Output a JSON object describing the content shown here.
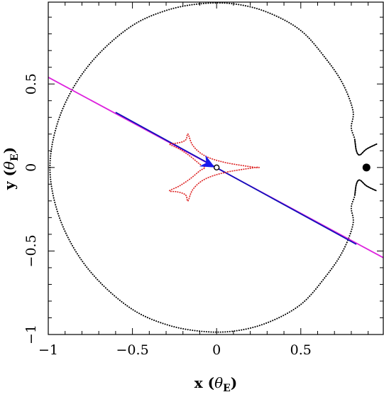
{
  "chart_data": {
    "type": "line",
    "xlabel": "x (θ_E)",
    "ylabel": "y (θ_E)",
    "xlim": [
      -1.0,
      0.99
    ],
    "ylim": [
      -1.0,
      0.99
    ],
    "xticks": [
      -1,
      -0.5,
      0,
      0.5
    ],
    "xtick_labels": [
      "−1",
      "−0.5",
      "0",
      "0.5"
    ],
    "yticks": [
      -1,
      -0.5,
      0,
      0.5
    ],
    "ytick_labels": [
      "−1",
      "−0.5",
      "0",
      "0.5"
    ],
    "grid": false,
    "critical_curve": {
      "style": "dotted",
      "color": "#000000",
      "outer_loop": [
        [
          0.81,
          0.34
        ],
        [
          0.75,
          0.5
        ],
        [
          0.65,
          0.65
        ],
        [
          0.5,
          0.82
        ],
        [
          0.3,
          0.93
        ],
        [
          0.1,
          0.98
        ],
        [
          -0.1,
          0.98
        ],
        [
          -0.3,
          0.94
        ],
        [
          -0.5,
          0.85
        ],
        [
          -0.7,
          0.68
        ],
        [
          -0.85,
          0.48
        ],
        [
          -0.95,
          0.25
        ],
        [
          -0.99,
          0.0
        ],
        [
          -0.95,
          -0.25
        ],
        [
          -0.85,
          -0.48
        ],
        [
          -0.7,
          -0.68
        ],
        [
          -0.5,
          -0.85
        ],
        [
          -0.3,
          -0.94
        ],
        [
          -0.1,
          -0.98
        ],
        [
          0.1,
          -0.98
        ],
        [
          0.3,
          -0.93
        ],
        [
          0.5,
          -0.82
        ],
        [
          0.65,
          -0.65
        ],
        [
          0.75,
          -0.5
        ],
        [
          0.81,
          -0.34
        ]
      ],
      "notch_upper": [
        [
          0.81,
          0.34
        ],
        [
          0.8,
          0.24
        ],
        [
          0.82,
          0.17
        ],
        [
          0.83,
          0.1
        ],
        [
          0.85,
          0.075
        ],
        [
          0.89,
          0.11
        ],
        [
          0.95,
          0.14
        ]
      ],
      "notch_lower": [
        [
          0.81,
          -0.34
        ],
        [
          0.8,
          -0.24
        ],
        [
          0.82,
          -0.17
        ],
        [
          0.83,
          -0.1
        ],
        [
          0.85,
          -0.075
        ],
        [
          0.89,
          -0.11
        ],
        [
          0.95,
          -0.14
        ]
      ]
    },
    "caustic": {
      "color": "#dd2222",
      "vertices": [
        [
          -0.17,
          0.2
        ],
        [
          0.23,
          0.0
        ],
        [
          -0.17,
          -0.2
        ],
        [
          -0.28,
          0.14
        ],
        [
          -0.28,
          -0.14
        ]
      ],
      "curve_points": [
        [
          0.23,
          0.0
        ],
        [
          0.05,
          0.03
        ],
        [
          -0.07,
          0.07
        ],
        [
          -0.14,
          0.13
        ],
        [
          -0.17,
          0.2
        ],
        [
          -0.18,
          0.17
        ],
        [
          -0.2,
          0.155
        ],
        [
          -0.24,
          0.145
        ],
        [
          -0.28,
          0.14
        ],
        [
          -0.22,
          0.11
        ],
        [
          -0.16,
          0.07
        ],
        [
          -0.1,
          0.02
        ],
        [
          -0.07,
          0.0
        ],
        [
          -0.1,
          -0.02
        ],
        [
          -0.16,
          -0.07
        ],
        [
          -0.22,
          -0.11
        ],
        [
          -0.28,
          -0.14
        ],
        [
          -0.24,
          -0.145
        ],
        [
          -0.2,
          -0.155
        ],
        [
          -0.18,
          -0.17
        ],
        [
          -0.17,
          -0.2
        ],
        [
          -0.14,
          -0.13
        ],
        [
          -0.07,
          -0.07
        ],
        [
          0.05,
          -0.03
        ],
        [
          0.23,
          0.0
        ]
      ]
    },
    "trajectory": {
      "color_outside": "#dd22dd",
      "color_inside": "#1111bb",
      "start": [
        -1.0,
        0.54
      ],
      "end": [
        0.99,
        -0.54
      ],
      "inside_start": [
        -0.6,
        0.33
      ],
      "inside_end": [
        0.83,
        -0.46
      ]
    },
    "source_arrow": {
      "color": "#1a1aee",
      "tip": [
        -0.01,
        0.0
      ],
      "direction": [
        1.0,
        -0.54
      ]
    },
    "lens_markers": [
      {
        "name": "primary",
        "x": 0.0,
        "y": 0.0,
        "size": "small",
        "style": "open-circle"
      },
      {
        "name": "companion",
        "x": 0.89,
        "y": 0.0,
        "size": "large",
        "style": "filled"
      }
    ]
  }
}
